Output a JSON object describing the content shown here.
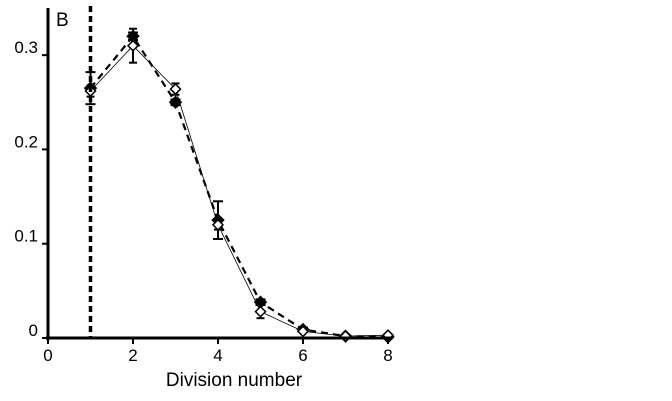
{
  "chart_data": {
    "type": "line",
    "panel_label": "B",
    "title": "",
    "xlabel": "Division number",
    "ylabel": "",
    "xlim": [
      0,
      8
    ],
    "ylim": [
      0,
      0.35
    ],
    "x_ticks": [
      0,
      2,
      4,
      6,
      8
    ],
    "x_tick_labels": [
      "0",
      "2",
      "4",
      "6",
      "8"
    ],
    "y_ticks": [
      0,
      0.1,
      0.2,
      0.3
    ],
    "y_tick_labels": [
      "0",
      "0.1",
      "0.2",
      "0.3"
    ],
    "reference_line_x": 1,
    "grid": false,
    "legend": "none",
    "series": [
      {
        "marker": "diamond-filled",
        "line": "dashed",
        "x": [
          1,
          2,
          3,
          4,
          5,
          6,
          7,
          8
        ],
        "y": [
          0.265,
          0.32,
          0.25,
          0.125,
          0.038,
          0.009,
          0.002,
          0.001
        ],
        "err": [
          0.017,
          0.004,
          0.003,
          0.02,
          0.003,
          0.002,
          0.001,
          0.001
        ]
      },
      {
        "marker": "diamond-open",
        "line": "thin-solid",
        "x": [
          1,
          2,
          3,
          4,
          5,
          6,
          7,
          8
        ],
        "y": [
          0.262,
          0.31,
          0.264,
          0.12,
          0.028,
          0.007,
          0.002,
          0.003
        ],
        "err": [
          0.006,
          0.018,
          0.006,
          0.005,
          0.007,
          0.001,
          0.001,
          0.001
        ]
      }
    ]
  }
}
